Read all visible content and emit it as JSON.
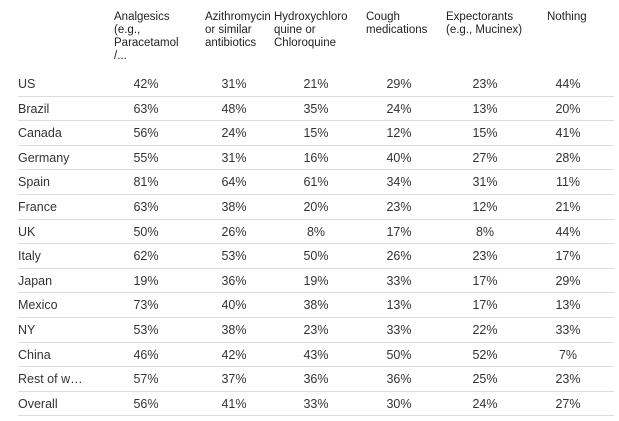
{
  "chart_data": {
    "type": "table",
    "columns": [
      "Analgesics\n(e.g.,\nParacetamol\n/...",
      "Azithromycin\nor similar\nantibiotics",
      "Hydroxychloro\nquine or\nChloroquine",
      "Cough\nmedications",
      "Expectorants\n(e.g., Mucinex)",
      "Nothing"
    ],
    "rows": [
      {
        "label": "US",
        "values": [
          "42%",
          "31%",
          "21%",
          "29%",
          "23%",
          "44%"
        ]
      },
      {
        "label": "Brazil",
        "values": [
          "63%",
          "48%",
          "35%",
          "24%",
          "13%",
          "20%"
        ]
      },
      {
        "label": "Canada",
        "values": [
          "56%",
          "24%",
          "15%",
          "12%",
          "15%",
          "41%"
        ]
      },
      {
        "label": "Germany",
        "values": [
          "55%",
          "31%",
          "16%",
          "40%",
          "27%",
          "28%"
        ]
      },
      {
        "label": "Spain",
        "values": [
          "81%",
          "64%",
          "61%",
          "34%",
          "31%",
          "11%"
        ]
      },
      {
        "label": "France",
        "values": [
          "63%",
          "38%",
          "20%",
          "23%",
          "12%",
          "21%"
        ]
      },
      {
        "label": "UK",
        "values": [
          "50%",
          "26%",
          "8%",
          "17%",
          "8%",
          "44%"
        ]
      },
      {
        "label": "Italy",
        "values": [
          "62%",
          "53%",
          "50%",
          "26%",
          "23%",
          "17%"
        ]
      },
      {
        "label": "Japan",
        "values": [
          "19%",
          "36%",
          "19%",
          "33%",
          "17%",
          "29%"
        ]
      },
      {
        "label": "Mexico",
        "values": [
          "73%",
          "40%",
          "38%",
          "13%",
          "17%",
          "13%"
        ]
      },
      {
        "label": "NY",
        "values": [
          "53%",
          "38%",
          "23%",
          "33%",
          "22%",
          "33%"
        ]
      },
      {
        "label": "China",
        "values": [
          "46%",
          "42%",
          "43%",
          "50%",
          "52%",
          "7%"
        ]
      },
      {
        "label": "Rest of w…",
        "values": [
          "57%",
          "37%",
          "36%",
          "36%",
          "25%",
          "23%"
        ]
      },
      {
        "label": "Overall",
        "values": [
          "56%",
          "41%",
          "33%",
          "30%",
          "24%",
          "27%"
        ]
      }
    ]
  }
}
